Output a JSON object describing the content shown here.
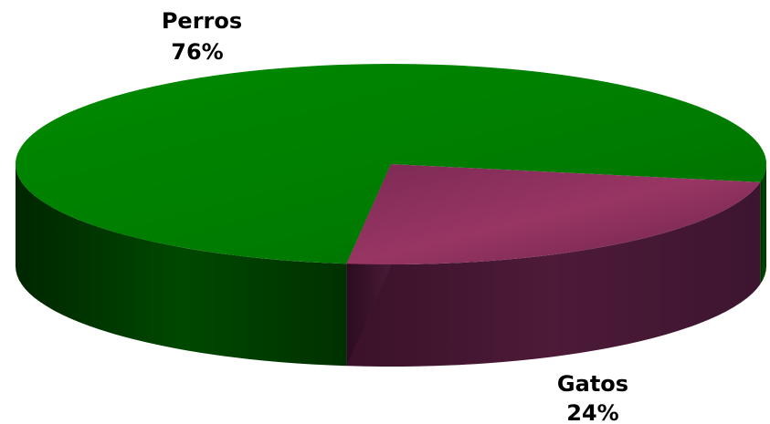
{
  "chart_data": {
    "type": "pie",
    "style": "3d",
    "categories": [
      "Perros",
      "Gatos"
    ],
    "values": [
      76,
      24
    ],
    "labels": [
      {
        "name": "Perros",
        "value_text": "76%"
      },
      {
        "name": "Gatos",
        "value_text": "24%"
      }
    ],
    "colors": {
      "Perros": "#008000",
      "Gatos": "#993366"
    },
    "legend": "none",
    "title": ""
  }
}
